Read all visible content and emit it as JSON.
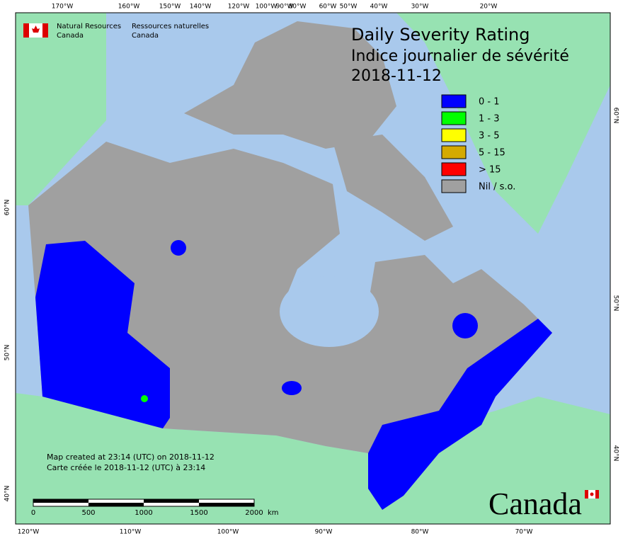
{
  "header": {
    "org_en": [
      "Natural Resources",
      "Canada"
    ],
    "org_fr": [
      "Ressources naturelles",
      "Canada"
    ]
  },
  "title": [
    "Daily Severity Rating",
    "Indice journalier de sévérité",
    "2018-11-12"
  ],
  "legend": [
    {
      "label": "0 - 1",
      "color": "#0000ff"
    },
    {
      "label": "1 - 3",
      "color": "#00ff00"
    },
    {
      "label": "3 - 5",
      "color": "#ffff00"
    },
    {
      "label": "5 - 15",
      "color": "#d4aa00"
    },
    {
      "label": "> 15",
      "color": "#ff0000"
    },
    {
      "label": "Nil / s.o.",
      "color": "#a0a0a0"
    }
  ],
  "graticule": {
    "top": [
      "170°W",
      "160°W",
      "150°W",
      "140°W",
      "120°W",
      "100°W",
      "90°W",
      "80°W",
      "60°W",
      "50°W",
      "40°W",
      "30°W",
      "20°W"
    ],
    "bottom": [
      "120°W",
      "110°W",
      "100°W",
      "90°W",
      "80°W",
      "70°W"
    ],
    "left": [
      "60°N",
      "50°N",
      "40°N"
    ],
    "right": [
      "60°N",
      "50°N",
      "40°N"
    ]
  },
  "footer": [
    "Map created at 23:14 (UTC) on 2018-11-12",
    "Carte créée le 2018-11-12 (UTC) à 23:14"
  ],
  "scale_bar": {
    "ticks": [
      0,
      500,
      1000,
      1500,
      2000
    ],
    "unit": "km"
  },
  "wordmark": "Canada"
}
